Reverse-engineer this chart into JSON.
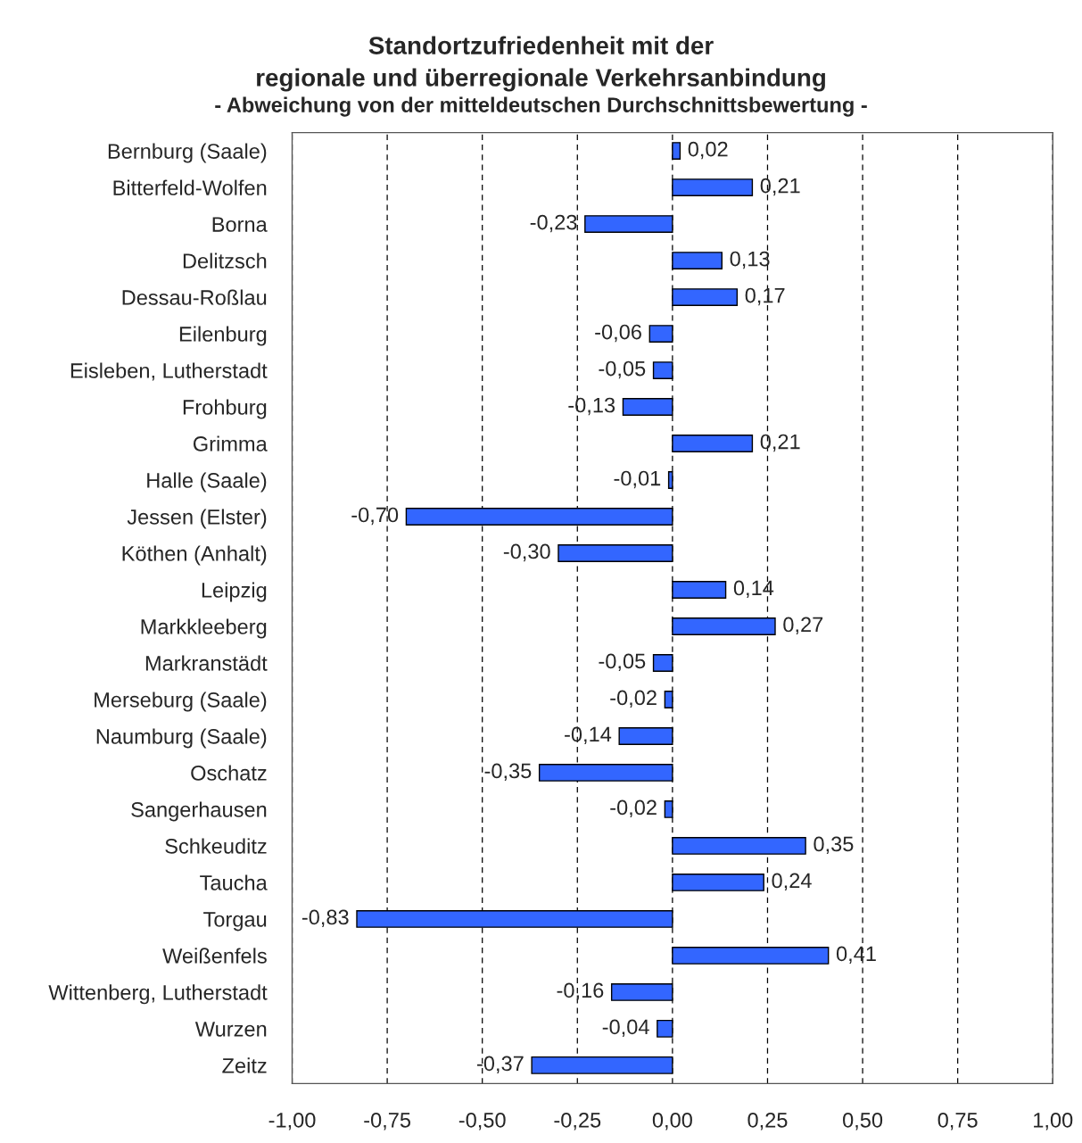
{
  "chart_data": {
    "type": "bar",
    "orientation": "horizontal",
    "title": "Standortzufriedenheit mit der\nregionale und überregionale Verkehrsanbindung",
    "subtitle": "- Abweichung von der mitteldeutschen Durchschnittsbewertung -",
    "categories": [
      "Bernburg (Saale)",
      "Bitterfeld-Wolfen",
      "Borna",
      "Delitzsch",
      "Dessau-Roßlau",
      "Eilenburg",
      "Eisleben, Lutherstadt",
      "Frohburg",
      "Grimma",
      "Halle (Saale)",
      "Jessen (Elster)",
      "Köthen (Anhalt)",
      "Leipzig",
      "Markkleeberg",
      "Markranstädt",
      "Merseburg (Saale)",
      "Naumburg (Saale)",
      "Oschatz",
      "Sangerhausen",
      "Schkeuditz",
      "Taucha",
      "Torgau",
      "Weißenfels",
      "Wittenberg, Lutherstadt",
      "Wurzen",
      "Zeitz"
    ],
    "values": [
      0.02,
      0.21,
      -0.23,
      0.13,
      0.17,
      -0.06,
      -0.05,
      -0.13,
      0.21,
      -0.01,
      -0.7,
      -0.3,
      0.14,
      0.27,
      -0.05,
      -0.02,
      -0.14,
      -0.35,
      -0.02,
      0.35,
      0.24,
      -0.83,
      0.41,
      -0.16,
      -0.04,
      -0.37
    ],
    "value_labels": [
      "0,02",
      "0,21",
      "-0,23",
      "0,13",
      "0,17",
      "-0,06",
      "-0,05",
      "-0,13",
      "0,21",
      "-0,01",
      "-0,70",
      "-0,30",
      "0,14",
      "0,27",
      "-0,05",
      "-0,02",
      "-0,14",
      "-0,35",
      "-0,02",
      "0,35",
      "0,24",
      "-0,83",
      "0,41",
      "-0,16",
      "-0,04",
      "-0,37"
    ],
    "color": "#3366ff",
    "xlim": [
      -1,
      1
    ],
    "xticks": [
      {
        "value": -1,
        "label": "-1,00"
      },
      {
        "value": -0.75,
        "label": "-0,75"
      },
      {
        "value": -0.5,
        "label": "-0,50"
      },
      {
        "value": -0.25,
        "label": "-0,25"
      },
      {
        "value": 0,
        "label": "0,00"
      },
      {
        "value": 0.25,
        "label": "0,25"
      },
      {
        "value": 0.5,
        "label": "0,50"
      },
      {
        "value": 0.75,
        "label": "0,75"
      },
      {
        "value": 1,
        "label": "1,00"
      }
    ],
    "grid": "x",
    "line_style": "dashed"
  }
}
